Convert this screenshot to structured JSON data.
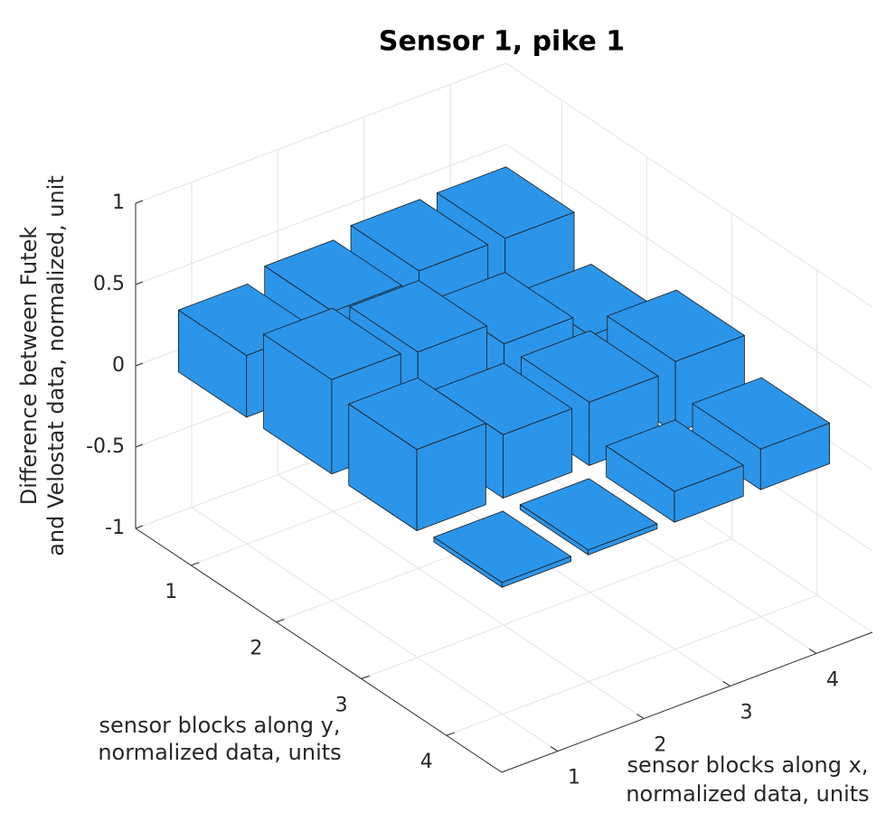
{
  "chart_data": {
    "type": "bar3",
    "title": "Sensor 1, pike 1",
    "xlabel": [
      "sensor blocks along x,",
      "normalized data, units"
    ],
    "ylabel": [
      "sensor blocks along y,",
      "normalized data, units"
    ],
    "zlabel": [
      "Difference between Futek",
      "and Velostat data, normalized, unit"
    ],
    "x": [
      1,
      2,
      3,
      4
    ],
    "y": [
      1,
      2,
      3,
      4
    ],
    "values": [
      [
        0.38,
        0.45,
        0.5,
        0.5
      ],
      [
        0.58,
        0.55,
        0.4,
        0.25
      ],
      [
        0.5,
        0.39,
        0.39,
        0.44
      ],
      [
        0.03,
        0.03,
        0.19,
        0.25
      ]
    ],
    "color": "#2b95e9",
    "xlim": [
      0.35,
      4.65
    ],
    "ylim": [
      0.35,
      4.65
    ],
    "zlim": [
      -1,
      1
    ],
    "xticks": [
      1,
      2,
      3,
      4
    ],
    "yticks": [
      1,
      2,
      3,
      4
    ],
    "zticks": [
      -1,
      -0.5,
      0,
      0.5,
      1
    ],
    "grid": true
  }
}
